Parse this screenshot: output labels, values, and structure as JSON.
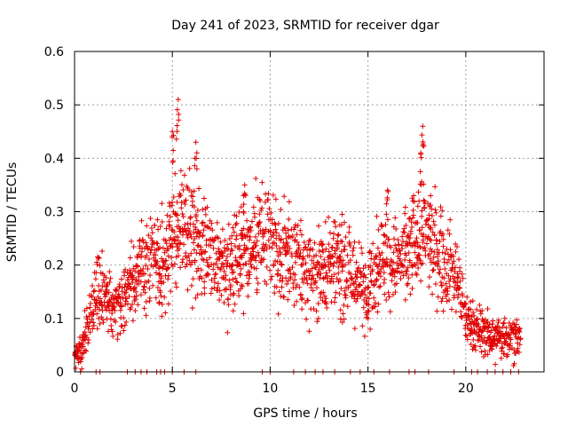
{
  "chart_data": {
    "type": "scatter",
    "title": "Day 241 of 2023, SRMTID for receiver dgar",
    "xlabel": "GPS time / hours",
    "ylabel": "SRMTID / TECUs",
    "xlim": [
      0,
      24
    ],
    "ylim": [
      0,
      0.6
    ],
    "x_ticks": [
      "0",
      "5",
      "10",
      "15",
      "20"
    ],
    "y_ticks": [
      "0",
      "0.1",
      "0.2",
      "0.3",
      "0.4",
      "0.5",
      "0.6"
    ],
    "grid": true,
    "marker": "plus",
    "color": "#e00000",
    "envelope": {
      "description": "approximate running median of the scattered samples (hours, TECUs)",
      "x": [
        0.0,
        0.3,
        0.6,
        0.9,
        1.2,
        1.5,
        2.0,
        2.5,
        3.0,
        3.5,
        4.0,
        4.5,
        5.0,
        5.5,
        6.0,
        6.5,
        7.0,
        7.5,
        8.0,
        8.5,
        9.0,
        9.5,
        10.0,
        10.5,
        11.0,
        11.5,
        12.0,
        12.5,
        13.0,
        13.5,
        14.0,
        14.5,
        15.0,
        15.5,
        16.0,
        16.5,
        17.0,
        17.5,
        18.0,
        18.5,
        19.0,
        19.5,
        20.0,
        20.5,
        21.0,
        21.5,
        22.0,
        22.5,
        22.8
      ],
      "y": [
        0.03,
        0.04,
        0.08,
        0.13,
        0.15,
        0.14,
        0.13,
        0.15,
        0.17,
        0.19,
        0.22,
        0.18,
        0.27,
        0.28,
        0.25,
        0.22,
        0.21,
        0.2,
        0.21,
        0.22,
        0.23,
        0.25,
        0.24,
        0.22,
        0.21,
        0.2,
        0.19,
        0.19,
        0.2,
        0.2,
        0.18,
        0.17,
        0.16,
        0.21,
        0.22,
        0.2,
        0.21,
        0.25,
        0.26,
        0.22,
        0.2,
        0.19,
        0.1,
        0.08,
        0.07,
        0.06,
        0.07,
        0.07,
        0.06
      ]
    },
    "peaks": [
      {
        "x": 5.3,
        "y": 0.51
      },
      {
        "x": 5.0,
        "y": 0.45
      },
      {
        "x": 6.2,
        "y": 0.43
      },
      {
        "x": 17.8,
        "y": 0.46
      },
      {
        "x": 17.7,
        "y": 0.41
      },
      {
        "x": 8.7,
        "y": 0.35
      },
      {
        "x": 16.0,
        "y": 0.34
      },
      {
        "x": 18.2,
        "y": 0.33
      }
    ],
    "zero_samples_x": [
      0.3,
      1.1,
      1.3,
      2.7,
      3.1,
      3.4,
      3.7,
      4.2,
      4.4,
      4.6,
      5.0,
      5.6,
      6.2,
      9.6,
      10.0,
      11.2,
      11.8,
      12.3,
      12.7,
      13.3,
      14.1,
      14.6,
      15.3,
      16.1,
      17.1,
      17.4,
      18.1,
      19.4,
      20.3,
      20.6,
      21.1,
      21.5,
      21.9,
      22.3,
      22.7
    ]
  }
}
